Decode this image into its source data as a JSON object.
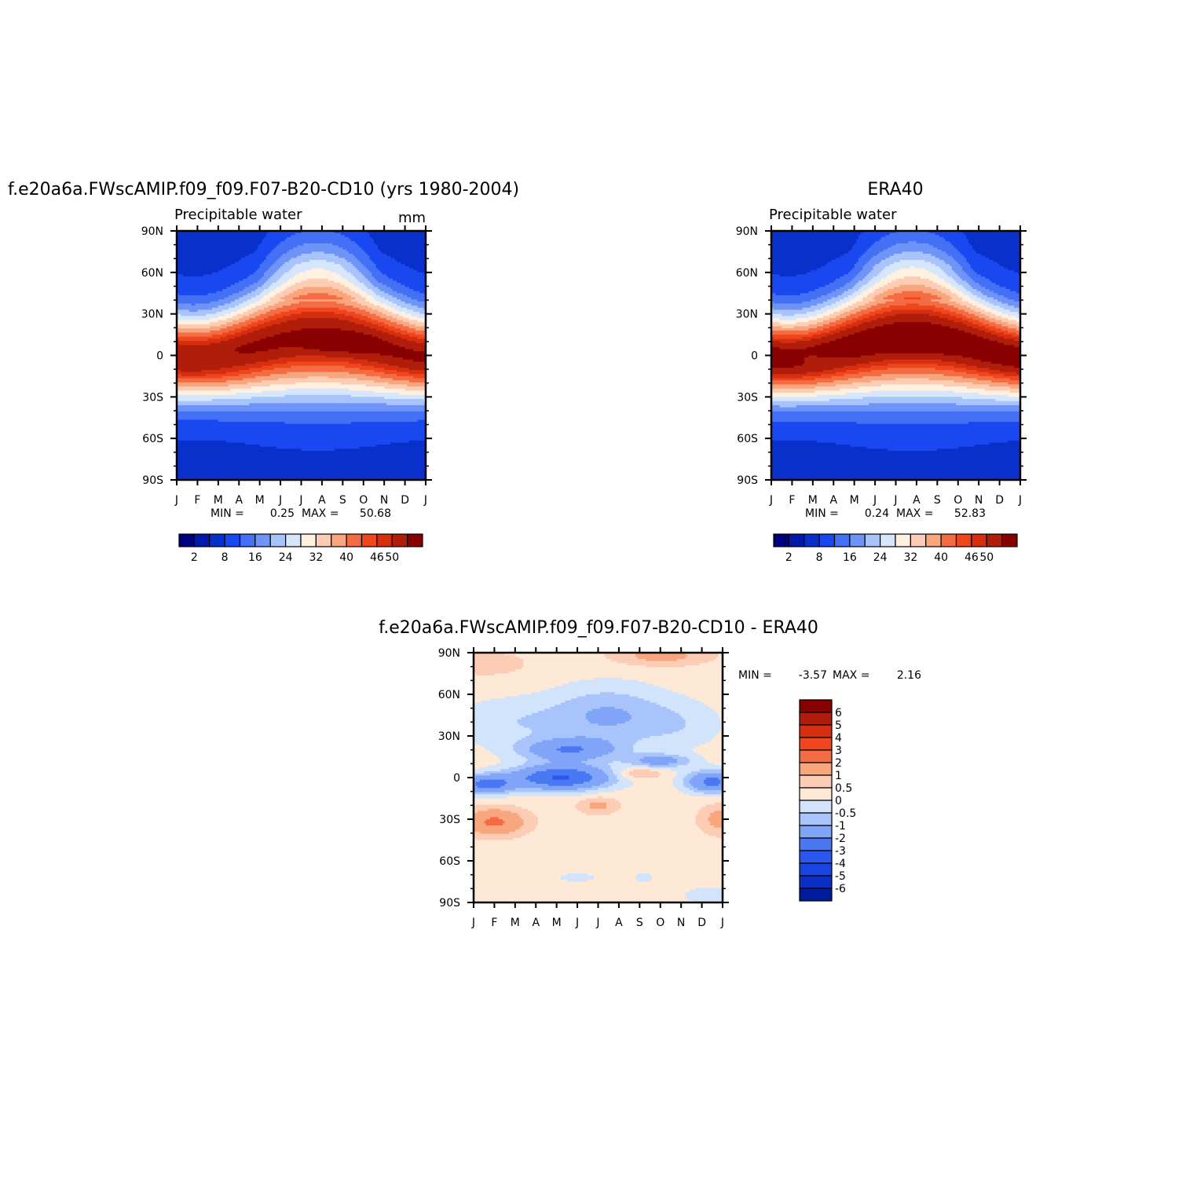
{
  "chart_data": [
    {
      "type": "heatmap",
      "title": "f.e20a6a.FWscAMIP.f09_f09.F07-B20-CD10 (yrs 1980-2004)",
      "subtitle": "Precipitable water",
      "units": "mm",
      "x_ticklabels": [
        "J",
        "F",
        "M",
        "A",
        "M",
        "J",
        "J",
        "A",
        "S",
        "O",
        "N",
        "D",
        "J"
      ],
      "y_ticklabels": [
        "90N",
        "60N",
        "30N",
        "0",
        "30S",
        "60S",
        "90S"
      ],
      "ylim": [
        -90,
        90
      ],
      "stats": {
        "min_label": "MIN =",
        "min": "0.25",
        "max_label": "MAX =",
        "max": "50.68"
      },
      "colorbar": {
        "orientation": "horizontal",
        "tick_labels": [
          "2",
          "8",
          "16",
          "24",
          "32",
          "40",
          "46",
          "50"
        ],
        "colors": [
          "#00007f",
          "#0019a8",
          "#0a30cc",
          "#1a48f0",
          "#4470f5",
          "#6e94f7",
          "#a8c4fa",
          "#d6e6fd",
          "#fff0e0",
          "#fccdb4",
          "#f8a67e",
          "#f46c44",
          "#f0461e",
          "#d62f10",
          "#b01e0b",
          "#880000"
        ]
      },
      "peak_max_month": 7.8,
      "peak_max_lat": 8,
      "peak_min_month": 1.6,
      "peak_min_lat": -2
    },
    {
      "type": "heatmap",
      "title": "ERA40",
      "subtitle": "Precipitable water",
      "x_ticklabels": [
        "J",
        "F",
        "M",
        "A",
        "M",
        "J",
        "J",
        "A",
        "S",
        "O",
        "N",
        "D",
        "J"
      ],
      "y_ticklabels": [
        "90N",
        "60N",
        "30N",
        "0",
        "30S",
        "60S",
        "90S"
      ],
      "ylim": [
        -90,
        90
      ],
      "stats": {
        "min_label": "MIN =",
        "min": "0.24",
        "max_label": "MAX =",
        "max": "52.83"
      },
      "colorbar": {
        "orientation": "horizontal",
        "tick_labels": [
          "2",
          "8",
          "16",
          "24",
          "32",
          "40",
          "46",
          "50"
        ],
        "colors": [
          "#00007f",
          "#0019a8",
          "#0a30cc",
          "#1a48f0",
          "#4470f5",
          "#6e94f7",
          "#a8c4fa",
          "#d6e6fd",
          "#fff0e0",
          "#fccdb4",
          "#f8a67e",
          "#f46c44",
          "#f0461e",
          "#d62f10",
          "#b01e0b",
          "#880000"
        ]
      },
      "peak_max_month": 7.0,
      "peak_max_lat": 8,
      "peak_min_month": 2.0,
      "peak_min_lat": -2
    },
    {
      "type": "heatmap",
      "title": "f.e20a6a.FWscAMIP.f09_f09.F07-B20-CD10 - ERA40",
      "x_ticklabels": [
        "J",
        "F",
        "M",
        "A",
        "M",
        "J",
        "J",
        "A",
        "S",
        "O",
        "N",
        "D",
        "J"
      ],
      "y_ticklabels": [
        "90N",
        "60N",
        "30N",
        "0",
        "30S",
        "60S",
        "90S"
      ],
      "ylim": [
        -90,
        90
      ],
      "stats": {
        "min_label": "MIN =",
        "min": "-3.57",
        "max_label": "MAX =",
        "max": "2.16"
      },
      "colorbar": {
        "orientation": "vertical",
        "tick_labels": [
          "6",
          "5",
          "4",
          "3",
          "2",
          "1",
          "0.5",
          "0",
          "-0.5",
          "-1",
          "-2",
          "-3",
          "-4",
          "-5",
          "-6"
        ],
        "colors": [
          "#880000",
          "#b01e0b",
          "#d62f10",
          "#f0461e",
          "#f46c44",
          "#f8a67e",
          "#fccdb4",
          "#fee8d6",
          "#d2e4fb",
          "#a8c4fa",
          "#80a4f7",
          "#4a78f2",
          "#2a58ee",
          "#1a44e0",
          "#0b2fc4",
          "#001c9c"
        ]
      }
    }
  ]
}
